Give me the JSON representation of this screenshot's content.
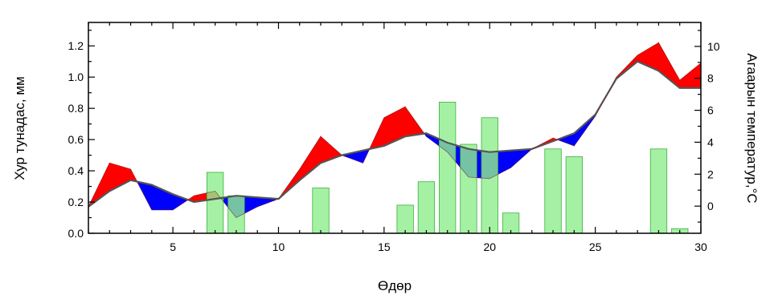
{
  "chart_data": {
    "type": "bar",
    "title": "",
    "xlabel": "Өдөр",
    "ylabel": "Хур тунадас, мм",
    "y2label": "Агаарын температур,°C",
    "xlim": [
      1,
      30
    ],
    "ylim": [
      0,
      1.35
    ],
    "y2lim": [
      -1.7,
      11.5
    ],
    "x_ticks": [
      5,
      10,
      15,
      20,
      25,
      30
    ],
    "y_ticks": [
      "0.0",
      "0.2",
      "0.4",
      "0.6",
      "0.8",
      "1.0",
      "1.2"
    ],
    "y2_ticks": [
      0,
      2,
      4,
      6,
      8,
      10
    ],
    "grid": false,
    "legend": "none",
    "colors": {
      "bars": "#90ee90",
      "bar_outline": "#3fae3f",
      "above": "#ff0000",
      "below": "#0000ff",
      "overlap": "#2e8b8b",
      "line": "#555555"
    },
    "bars": {
      "axis": "left",
      "x": [
        7,
        8,
        12,
        16,
        17,
        18,
        19,
        20,
        21,
        23,
        24,
        28,
        29
      ],
      "values": [
        0.39,
        0.24,
        0.29,
        0.18,
        0.33,
        0.84,
        0.57,
        0.74,
        0.13,
        0.54,
        0.49,
        0.54,
        0.03
      ]
    },
    "series": [
      {
        "axis": "left",
        "x": [
          1,
          2,
          3,
          4,
          5,
          6,
          7,
          8,
          9,
          10,
          11,
          12,
          13,
          14,
          15,
          16,
          17,
          18,
          19,
          20,
          21,
          22,
          23,
          24,
          25,
          26,
          27,
          28,
          29,
          30
        ],
        "values": [
          0.17,
          0.27,
          0.34,
          0.31,
          0.25,
          0.2,
          0.22,
          0.24,
          0.23,
          0.22,
          0.34,
          0.45,
          0.5,
          0.53,
          0.56,
          0.62,
          0.64,
          0.58,
          0.54,
          0.52,
          0.53,
          0.54,
          0.59,
          0.64,
          0.76,
          0.99,
          1.1,
          1.04,
          0.93,
          0.93
        ]
      },
      {
        "axis": "left",
        "x": [
          1,
          2,
          3,
          4,
          5,
          6,
          7,
          8,
          9,
          10,
          11,
          12,
          13,
          14,
          15,
          16,
          17,
          18,
          19,
          20,
          21,
          22,
          23,
          24,
          25,
          26,
          27,
          28,
          29,
          30
        ],
        "values": [
          0.17,
          0.45,
          0.41,
          0.15,
          0.15,
          0.24,
          0.27,
          0.1,
          0.17,
          0.22,
          0.41,
          0.62,
          0.5,
          0.45,
          0.74,
          0.81,
          0.62,
          0.52,
          0.36,
          0.35,
          0.42,
          0.54,
          0.61,
          0.56,
          0.75,
          1.0,
          1.14,
          1.22,
          0.98,
          1.09
        ]
      }
    ]
  }
}
